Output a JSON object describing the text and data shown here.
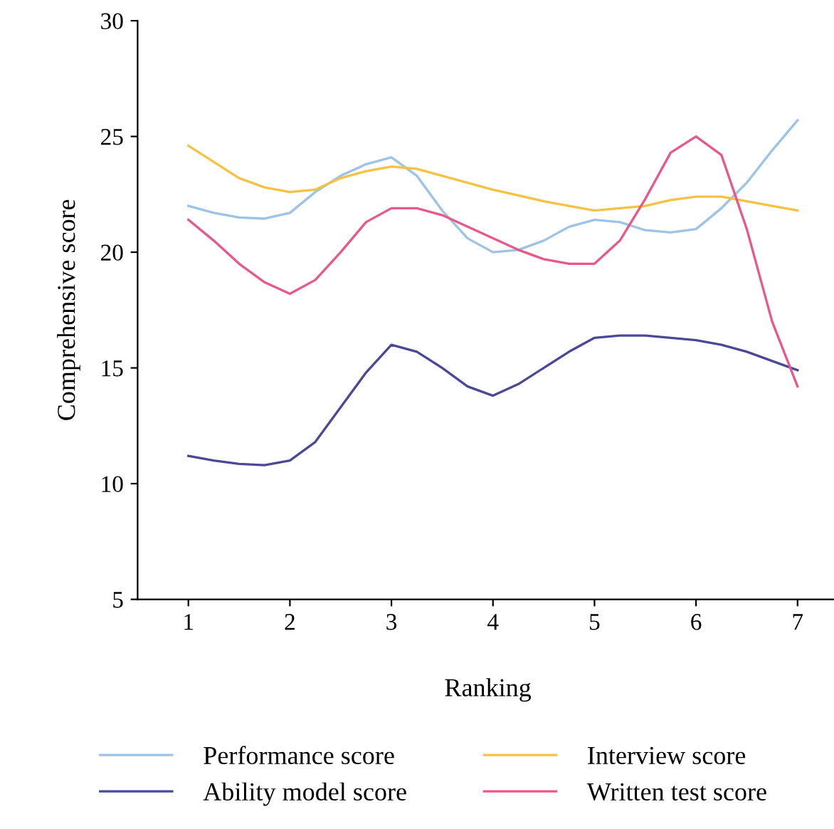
{
  "chart_data": {
    "type": "line",
    "xlabel": "Ranking",
    "ylabel": "Comprehensive score",
    "x": [
      1,
      1.25,
      1.5,
      1.75,
      2,
      2.25,
      2.5,
      2.75,
      3,
      3.25,
      3.5,
      3.75,
      4,
      4.25,
      4.5,
      4.75,
      5,
      5.25,
      5.5,
      5.75,
      6,
      6.25,
      6.5,
      6.75,
      7
    ],
    "xlim": [
      0.5,
      7.4
    ],
    "xticks": [
      1,
      2,
      3,
      4,
      5,
      6,
      7
    ],
    "ylim": [
      5,
      30
    ],
    "yticks": [
      5,
      10,
      15,
      20,
      25,
      30
    ],
    "grid": false,
    "legend": "bottom",
    "marker": "none",
    "line_style": "solid",
    "series": [
      {
        "name": "Performance score",
        "color": "#9dc3e6",
        "values": [
          22.0,
          21.7,
          21.5,
          21.45,
          21.7,
          22.6,
          23.3,
          23.8,
          24.1,
          23.3,
          21.8,
          20.6,
          20.0,
          20.1,
          20.5,
          21.1,
          21.4,
          21.3,
          20.95,
          20.85,
          21.0,
          21.9,
          23.0,
          24.4,
          25.7
        ]
      },
      {
        "name": "Interview score",
        "color": "#f5c242",
        "values": [
          24.6,
          23.9,
          23.2,
          22.8,
          22.6,
          22.7,
          23.2,
          23.5,
          23.7,
          23.6,
          23.3,
          23.0,
          22.7,
          22.45,
          22.2,
          22.0,
          21.8,
          21.9,
          22.0,
          22.25,
          22.4,
          22.4,
          22.2,
          22.0,
          21.8
        ]
      },
      {
        "name": "Ability model score",
        "color": "#4b4897",
        "values": [
          11.2,
          11.0,
          10.85,
          10.8,
          11.0,
          11.8,
          13.3,
          14.8,
          16.0,
          15.7,
          15.0,
          14.2,
          13.8,
          14.3,
          15.0,
          15.7,
          16.3,
          16.4,
          16.4,
          16.3,
          16.2,
          16.0,
          15.7,
          15.3,
          14.9
        ]
      },
      {
        "name": "Written test score",
        "color": "#e8598a",
        "values": [
          21.4,
          20.5,
          19.5,
          18.7,
          18.2,
          18.8,
          20.0,
          21.3,
          21.9,
          21.9,
          21.6,
          21.1,
          20.6,
          20.1,
          19.7,
          19.5,
          19.5,
          20.5,
          22.3,
          24.3,
          25.0,
          24.2,
          21.0,
          17.0,
          14.2
        ]
      }
    ]
  }
}
